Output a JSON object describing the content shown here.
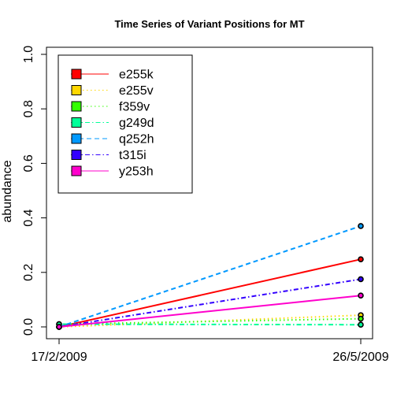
{
  "chart_data": {
    "type": "line",
    "title": "Time Series of Variant Positions for MT",
    "xlabel": "",
    "ylabel": "abundance",
    "x": [
      "17/2/2009",
      "26/5/2009"
    ],
    "ylim": [
      0,
      1
    ],
    "yticks": [
      "0.0",
      "0.2",
      "0.4",
      "0.6",
      "0.8",
      "1.0"
    ],
    "grid": false,
    "legend_position": "top-left",
    "series": [
      {
        "name": "e255k",
        "color": "#ff0000",
        "dash": "solid",
        "values": [
          0.0,
          0.248
        ]
      },
      {
        "name": "e255v",
        "color": "#ffd700",
        "dash": "dotted",
        "values": [
          0.0,
          0.043
        ]
      },
      {
        "name": "f359v",
        "color": "#33ff00",
        "dash": "dotted",
        "values": [
          0.01,
          0.03
        ]
      },
      {
        "name": "g249d",
        "color": "#00ff99",
        "dash": "dotdash",
        "values": [
          0.01,
          0.008
        ]
      },
      {
        "name": "q252h",
        "color": "#0099ff",
        "dash": "dashed",
        "values": [
          0.0,
          0.37
        ]
      },
      {
        "name": "t315i",
        "color": "#3300ff",
        "dash": "dotdash",
        "values": [
          0.0,
          0.175
        ]
      },
      {
        "name": "y253h",
        "color": "#ff00cc",
        "dash": "solid",
        "values": [
          0.0,
          0.115
        ]
      }
    ]
  }
}
